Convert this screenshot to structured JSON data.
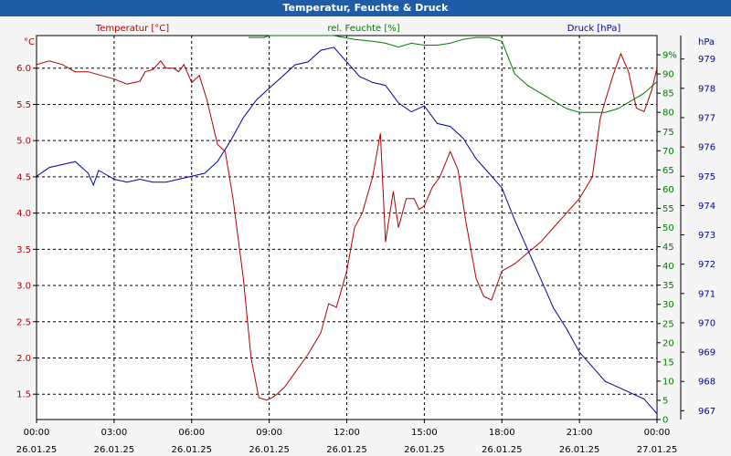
{
  "window": {
    "title": "Temperatur, Feuchte & Druck"
  },
  "chart_data": {
    "type": "line",
    "title": "Temperatur, Feuchte & Druck",
    "x_ticks": [
      {
        "time": "00:00",
        "date": "26.01.25"
      },
      {
        "time": "03:00",
        "date": "26.01.25"
      },
      {
        "time": "06:00",
        "date": "26.01.25"
      },
      {
        "time": "09:00",
        "date": "26.01.25"
      },
      {
        "time": "12:00",
        "date": "26.01.25"
      },
      {
        "time": "15:00",
        "date": "26.01.25"
      },
      {
        "time": "18:00",
        "date": "26.01.25"
      },
      {
        "time": "21:00",
        "date": "26.01.25"
      },
      {
        "time": "00:00",
        "date": "27.01.25"
      }
    ],
    "x_range_hours": [
      0,
      24
    ],
    "axes": {
      "temperature": {
        "unit": "°C",
        "ylim": [
          1.15,
          6.45
        ],
        "ticks": [
          "1.5",
          "2.0",
          "2.5",
          "3.0",
          "3.5",
          "4.0",
          "4.5",
          "5.0",
          "5.5",
          "6.0"
        ],
        "color": "#b00000"
      },
      "humidity": {
        "unit": "%",
        "ylim": [
          0,
          100
        ],
        "ticks": [
          "0",
          "5",
          "10",
          "15",
          "20",
          "25",
          "30",
          "35",
          "40",
          "45",
          "50",
          "55",
          "60",
          "65",
          "70",
          "75",
          "80",
          "85",
          "90",
          "9%"
        ],
        "color": "#007a00"
      },
      "pressure": {
        "unit": "hPa",
        "ylim": [
          966.7,
          979.8
        ],
        "ticks": [
          "967",
          "968",
          "969",
          "970",
          "971",
          "972",
          "973",
          "974",
          "975",
          "976",
          "977",
          "978",
          "979"
        ],
        "color": "#0000a0"
      }
    },
    "series": [
      {
        "name": "Temperatur [°C]",
        "axis": "temperature",
        "color": "#b00000",
        "x": [
          0,
          0.5,
          1,
          1.5,
          2,
          2.5,
          3,
          3.5,
          4,
          4.2,
          4.5,
          4.8,
          5,
          5.3,
          5.5,
          5.7,
          6,
          6.3,
          6.6,
          7,
          7.3,
          7.6,
          8,
          8.3,
          8.6,
          8.9,
          9.1,
          9.3,
          9.6,
          10,
          10.5,
          11,
          11.3,
          11.6,
          12,
          12.3,
          12.6,
          13,
          13.3,
          13.5,
          13.8,
          14,
          14.3,
          14.6,
          14.8,
          15,
          15.3,
          15.6,
          16,
          16.3,
          16.6,
          17,
          17.3,
          17.6,
          18,
          18.5,
          19,
          19.5,
          20,
          20.5,
          21,
          21.5,
          21.8,
          22,
          22.3,
          22.6,
          22.9,
          23.2,
          23.5,
          23.8,
          24
        ],
        "values": [
          6.05,
          6.1,
          6.05,
          5.95,
          5.95,
          5.9,
          5.85,
          5.78,
          5.82,
          5.95,
          5.98,
          6.1,
          6.0,
          6.0,
          5.95,
          6.05,
          5.8,
          5.9,
          5.55,
          4.95,
          4.85,
          4.2,
          3.1,
          2.0,
          1.45,
          1.42,
          1.45,
          1.5,
          1.6,
          1.8,
          2.05,
          2.35,
          2.75,
          2.7,
          3.2,
          3.8,
          4.0,
          4.5,
          5.1,
          3.6,
          4.3,
          3.8,
          4.2,
          4.2,
          4.05,
          4.1,
          4.35,
          4.5,
          4.85,
          4.6,
          3.9,
          3.1,
          2.85,
          2.8,
          3.2,
          3.3,
          3.45,
          3.6,
          3.8,
          4.0,
          4.2,
          4.5,
          5.3,
          5.55,
          5.9,
          6.2,
          5.95,
          5.45,
          5.4,
          5.7,
          6.0
        ]
      },
      {
        "name": "rel. Feuchte [%]",
        "axis": "humidity",
        "color": "#007a00",
        "x": [
          8.2,
          8.8,
          9.0,
          11.5,
          12.3,
          13,
          13.5,
          14,
          14.5,
          15,
          15.5,
          16,
          16.5,
          17,
          17.5,
          18,
          18.5,
          19,
          19.5,
          20,
          20.5,
          21,
          21.5,
          22,
          22.5,
          23,
          23.5,
          24
        ],
        "values": [
          99.5,
          99.5,
          100,
          100,
          99,
          98.5,
          98,
          97,
          98,
          97.5,
          97.5,
          98,
          99,
          99.5,
          99.5,
          98.5,
          90,
          87,
          85,
          83,
          81,
          80,
          80,
          80,
          81,
          83,
          85,
          88
        ]
      },
      {
        "name": "Druck [hPa]",
        "axis": "pressure",
        "color": "#0000a0",
        "x": [
          0,
          0.5,
          1,
          1.5,
          2,
          2.2,
          2.4,
          2.6,
          3,
          3.5,
          4,
          4.5,
          5,
          5.5,
          6,
          6.5,
          7,
          7.5,
          8,
          8.5,
          9,
          9.5,
          10,
          10.5,
          11,
          11.5,
          12,
          12.5,
          13,
          13.5,
          14,
          14.5,
          15,
          15.5,
          16,
          16.5,
          17,
          17.5,
          18,
          18.5,
          19,
          19.5,
          20,
          20.5,
          21,
          21.5,
          22,
          22.5,
          23,
          23.5,
          24
        ],
        "values": [
          975.0,
          975.3,
          975.4,
          975.5,
          975.1,
          974.7,
          975.2,
          975.1,
          974.9,
          974.8,
          974.9,
          974.8,
          974.8,
          974.9,
          975.0,
          975.1,
          975.5,
          976.2,
          977.0,
          977.6,
          978.0,
          978.4,
          978.8,
          978.9,
          979.3,
          979.4,
          978.9,
          978.4,
          978.2,
          978.1,
          977.5,
          977.2,
          977.4,
          976.8,
          976.7,
          976.3,
          975.6,
          975.1,
          974.6,
          973.5,
          972.5,
          971.5,
          970.5,
          969.8,
          969.0,
          968.5,
          968.0,
          967.8,
          967.6,
          967.4,
          966.9
        ]
      }
    ],
    "grid": true,
    "legend": "top"
  }
}
